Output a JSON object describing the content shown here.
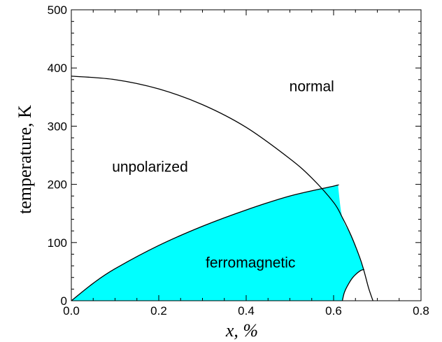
{
  "chart_data": {
    "type": "area",
    "xlabel": "x, %",
    "ylabel": "temperature, K",
    "xlim": [
      0.0,
      0.8
    ],
    "ylim": [
      0,
      500
    ],
    "x_ticks": [
      0.0,
      0.2,
      0.4,
      0.6,
      0.8
    ],
    "x_tick_labels": [
      "0.0",
      "0.2",
      "0.4",
      "0.6",
      "0.8"
    ],
    "y_ticks": [
      0,
      100,
      200,
      300,
      400,
      500
    ],
    "y_tick_labels": [
      "0",
      "100",
      "200",
      "300",
      "400",
      "500"
    ],
    "grid": false,
    "legend": "none",
    "series": [
      {
        "role": "transition-curve",
        "color": "#000000",
        "x": [
          0.0,
          0.1,
          0.2,
          0.3,
          0.4,
          0.5,
          0.55,
          0.6,
          0.62,
          0.64,
          0.66,
          0.67,
          0.68,
          0.69
        ],
        "y": [
          386,
          380,
          364,
          337,
          298,
          244,
          211,
          169,
          143,
          112,
          74,
          50,
          22,
          0
        ]
      },
      {
        "role": "ferromagnetic-boundary",
        "color": "#000000",
        "x": [
          0.0,
          0.05,
          0.1,
          0.2,
          0.3,
          0.4,
          0.5,
          0.6,
          0.61
        ],
        "y": [
          0,
          30,
          55,
          95,
          128,
          156,
          180,
          197,
          199
        ]
      },
      {
        "role": "inner-boundary",
        "color": "#000000",
        "x": [
          0.62,
          0.625,
          0.635,
          0.645,
          0.66,
          0.67
        ],
        "y": [
          0,
          15,
          30,
          41,
          51,
          54
        ]
      }
    ],
    "fill_color": "#00ffff",
    "annotations": [
      {
        "text": "normal",
        "x": 0.55,
        "y": 360
      },
      {
        "text": "unpolarized",
        "x": 0.18,
        "y": 222
      },
      {
        "text": "ferromagnetic",
        "x": 0.41,
        "y": 57
      }
    ]
  }
}
